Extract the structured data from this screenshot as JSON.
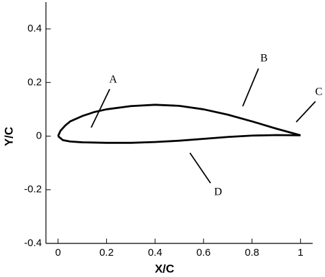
{
  "chart_data": {
    "type": "line",
    "x_label": "X/C",
    "y_label": "Y/C",
    "xlim": [
      -0.05,
      1.05
    ],
    "ylim": [
      -0.4,
      0.5
    ],
    "xticks": [
      0,
      0.2,
      0.4,
      0.6,
      0.8,
      1
    ],
    "yticks": [
      -0.4,
      -0.2,
      0,
      0.2,
      0.4
    ],
    "series": [
      {
        "color": "#000000",
        "x": [
          0,
          0.01,
          0.03,
          0.05,
          0.1,
          0.15,
          0.2,
          0.3,
          0.4,
          0.5,
          0.6,
          0.7,
          0.8,
          0.9,
          1
        ],
        "values": [
          0,
          0.02,
          0.04,
          0.055,
          0.075,
          0.09,
          0.1,
          0.112,
          0.117,
          0.113,
          0.1,
          0.08,
          0.055,
          0.028,
          0.003
        ]
      },
      {
        "color": "#000000",
        "x": [
          0,
          0.02,
          0.05,
          0.1,
          0.2,
          0.3,
          0.4,
          0.5,
          0.6,
          0.7,
          0.8,
          0.9,
          1
        ],
        "values": [
          0,
          -0.015,
          -0.02,
          -0.023,
          -0.025,
          -0.025,
          -0.022,
          -0.017,
          -0.01,
          -0.003,
          0.002,
          0.004,
          0.003
        ]
      }
    ],
    "annotations": [
      "A",
      "B",
      "C",
      "D"
    ]
  }
}
